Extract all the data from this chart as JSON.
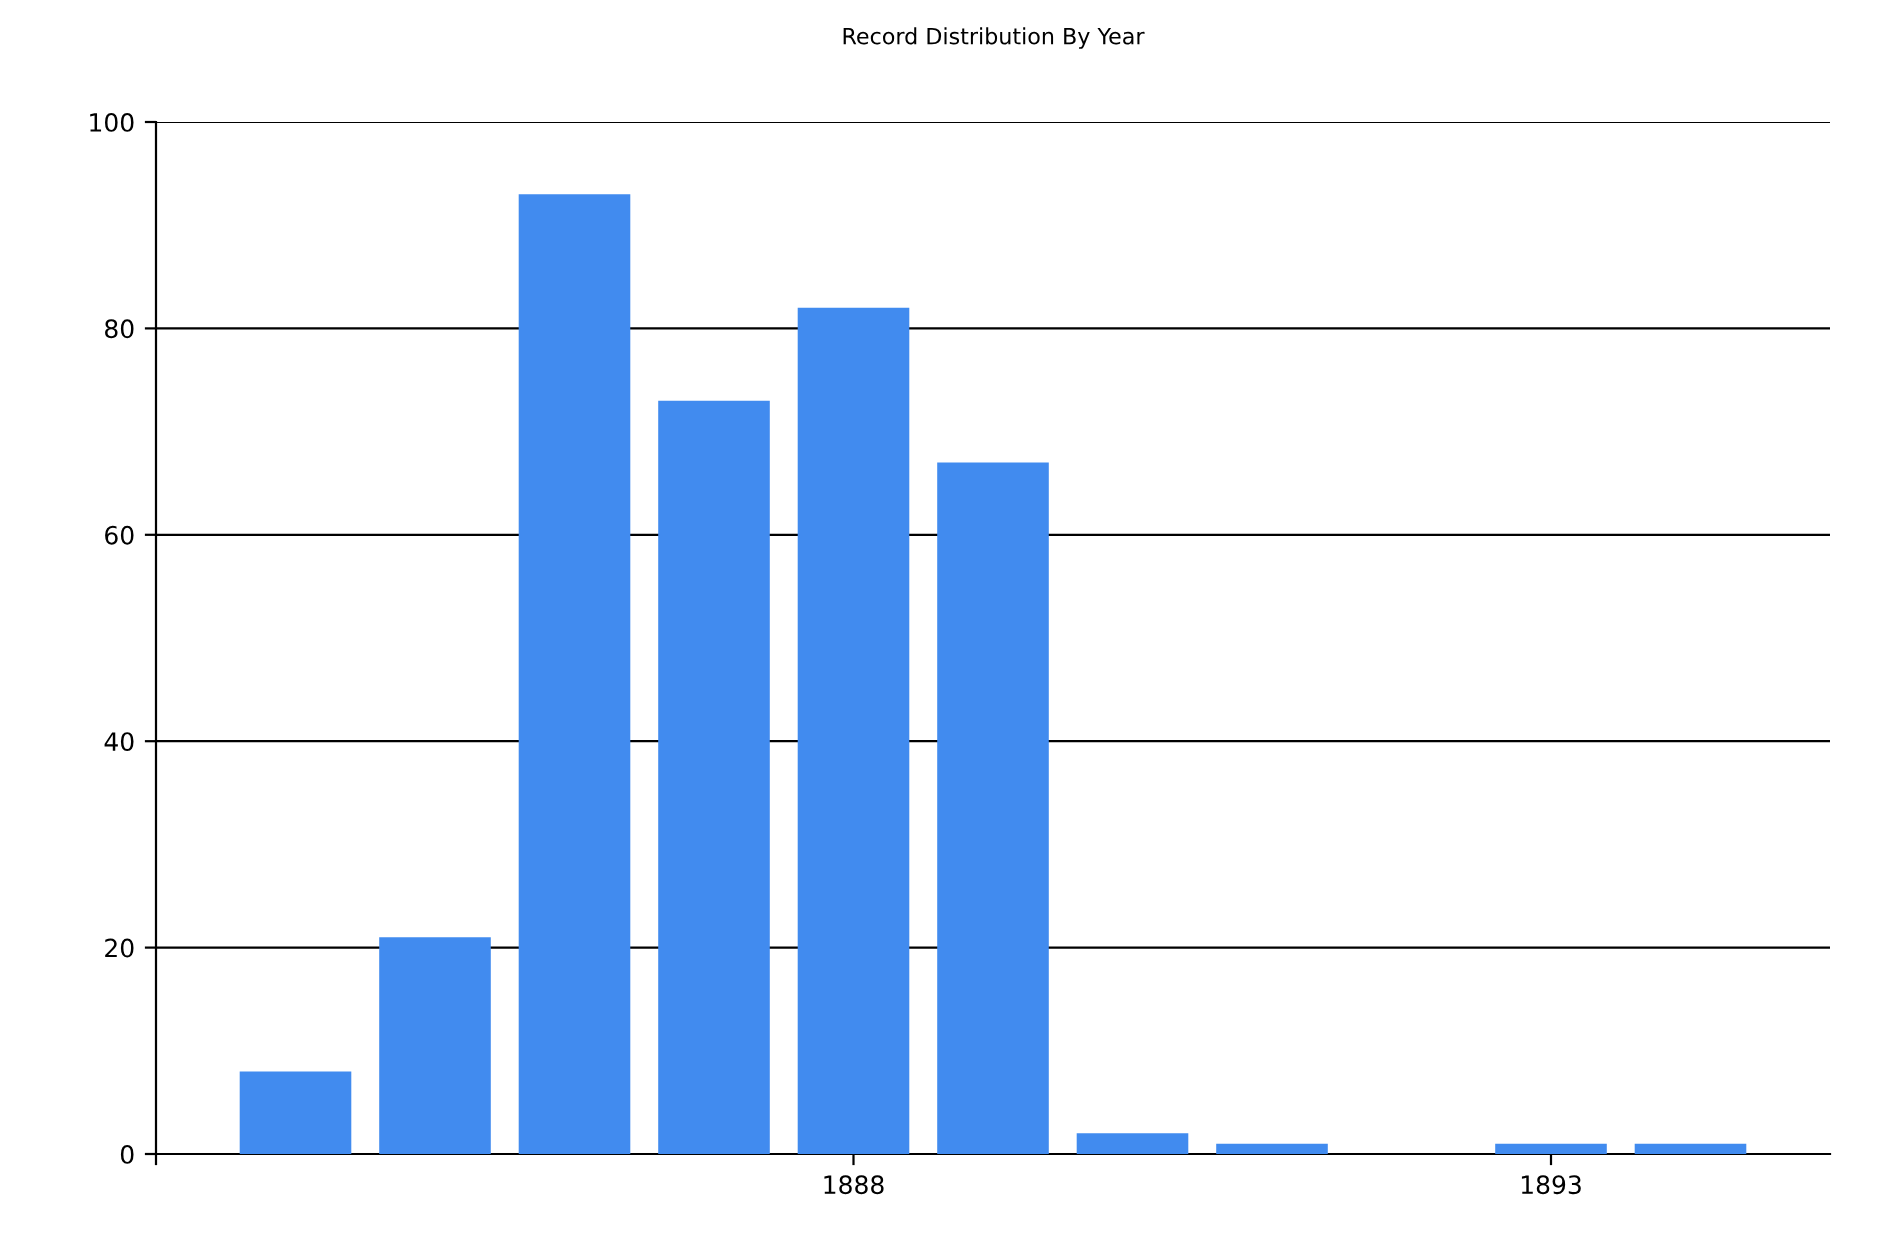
{
  "chart_data": {
    "type": "bar",
    "title": "Record Distribution By Year",
    "x": [
      1884,
      1885,
      1886,
      1887,
      1888,
      1889,
      1890,
      1891,
      1892,
      1893,
      1894
    ],
    "values": [
      8,
      21,
      93,
      73,
      82,
      67,
      2,
      1,
      0,
      1,
      1
    ],
    "color": "#418bef",
    "xlim": [
      1883,
      1895
    ],
    "xticks": [
      {
        "value": 1883,
        "label": null
      },
      1888,
      1893
    ],
    "ylim": [
      0,
      100
    ],
    "yticks": [
      0,
      20,
      40,
      60,
      80,
      100
    ],
    "grid": "y",
    "legend": false
  }
}
